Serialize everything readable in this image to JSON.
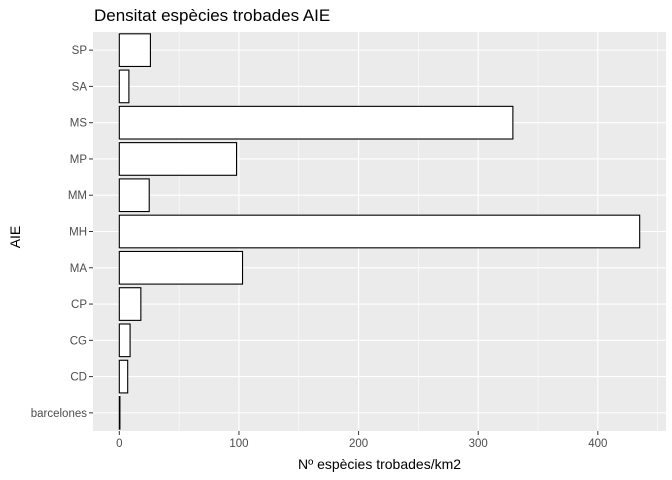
{
  "chart_data": {
    "type": "bar",
    "orientation": "horizontal",
    "title": "Densitat espècies trobades AIE",
    "xlabel": "Nº espècies trobades/km2",
    "ylabel": "AIE",
    "categories": [
      "barcelones",
      "CD",
      "CG",
      "CP",
      "MA",
      "MH",
      "MM",
      "MP",
      "MS",
      "SA",
      "SP"
    ],
    "values": [
      0.5,
      7,
      9,
      18,
      103,
      435,
      25,
      98,
      329,
      8,
      26
    ],
    "xlim": [
      -22,
      457
    ],
    "xticks": [
      0,
      100,
      200,
      300,
      400
    ],
    "grid": true,
    "legend": "none",
    "colors": {
      "panel": "#ebebeb",
      "grid_major": "#ffffff",
      "bar_fill": "#ffffff",
      "bar_stroke": "#000000",
      "tick_text": "#4d4d4d"
    }
  }
}
